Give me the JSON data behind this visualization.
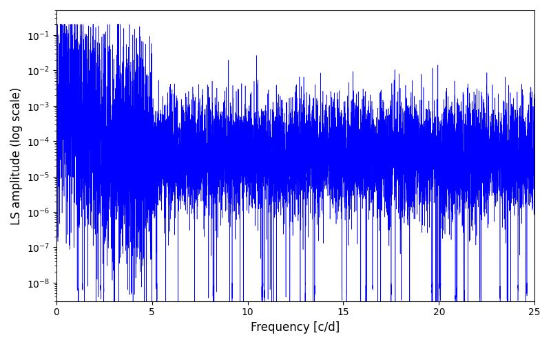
{
  "title": "",
  "xlabel": "Frequency [c/d]",
  "ylabel": "LS amplitude (log scale)",
  "xlim": [
    0,
    25
  ],
  "ylim_low": 3e-09,
  "ylim_high": 0.5,
  "xticks": [
    0,
    5,
    10,
    15,
    20,
    25
  ],
  "line_color": "blue",
  "freq_max": 25.0,
  "n_points": 10000,
  "seed": 12345,
  "figsize": [
    8.0,
    5.0
  ],
  "dpi": 100
}
